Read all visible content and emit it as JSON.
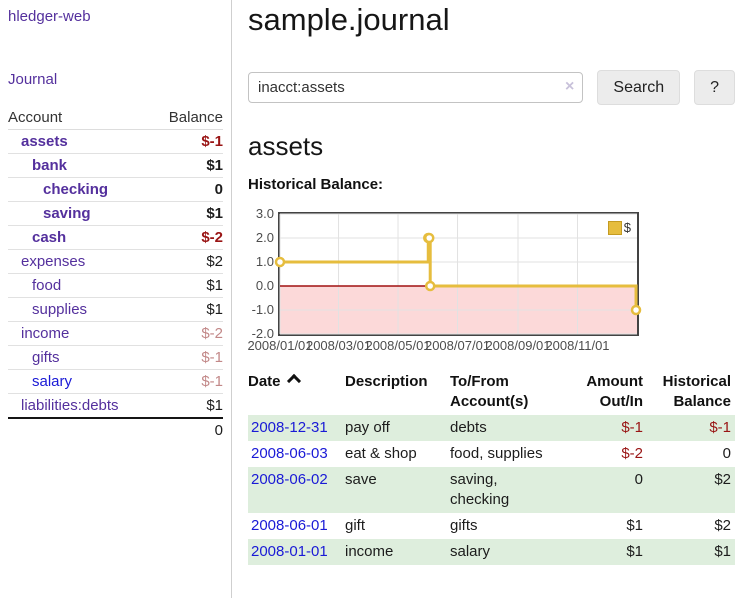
{
  "app": {
    "brand": "hledger-web",
    "nav_journal": "Journal"
  },
  "colors": {
    "link_purple": "#54309d",
    "link_blue": "#1a1ad6",
    "negative_strong": "#991414",
    "negative_light": "#c28888",
    "row_green": "#deeedd",
    "chart_gold": "#e6bd3e",
    "chart_pink": "#fcd9d9",
    "chart_zero_line": "#a01010",
    "chart_grid": "#e2e2e2"
  },
  "sidebar": {
    "headers": {
      "account": "Account",
      "balance": "Balance"
    },
    "accounts": [
      {
        "name": "assets",
        "level": 1,
        "bold": true,
        "balance": "$-1",
        "tone": "neg-strong"
      },
      {
        "name": "bank",
        "level": 2,
        "bold": true,
        "balance": "$1",
        "tone": ""
      },
      {
        "name": "checking",
        "level": 3,
        "bold": true,
        "balance": "0",
        "tone": ""
      },
      {
        "name": "saving",
        "level": 3,
        "bold": true,
        "balance": "$1",
        "tone": ""
      },
      {
        "name": "cash",
        "level": 2,
        "bold": true,
        "balance": "$-2",
        "tone": "neg-strong"
      },
      {
        "name": "expenses",
        "level": 1,
        "bold": false,
        "balance": "$2",
        "tone": ""
      },
      {
        "name": "food",
        "level": 2,
        "bold": false,
        "balance": "$1",
        "tone": ""
      },
      {
        "name": "supplies",
        "level": 2,
        "bold": false,
        "balance": "$1",
        "tone": ""
      },
      {
        "name": "income",
        "level": 1,
        "bold": false,
        "balance": "$-2",
        "tone": "neg-light"
      },
      {
        "name": "gifts",
        "level": 2,
        "bold": false,
        "balance": "$-1",
        "tone": "neg-light"
      },
      {
        "name": "salary",
        "level": 2,
        "bold": false,
        "balance": "$-1",
        "tone": "neg-light",
        "link_color": "blue"
      },
      {
        "name": "liabilities:debts",
        "level": 1,
        "bold": false,
        "balance": "$1",
        "tone": ""
      }
    ],
    "total": "0"
  },
  "page": {
    "title": "sample.journal"
  },
  "search": {
    "value": "inacct:assets",
    "clear_icon": "×",
    "submit_label": "Search",
    "help_label": "?"
  },
  "account_view": {
    "heading": "assets",
    "chart_title": "Historical Balance:"
  },
  "chart_data": {
    "type": "line",
    "mode": "steps",
    "title": "Historical Balance of assets",
    "legend": [
      {
        "label": "$",
        "color": "#e6bd3e"
      }
    ],
    "legend_position": "top-right",
    "grid": true,
    "y_axis": {
      "min": -2,
      "max": 3,
      "ticks": [
        {
          "label": "3.0",
          "value": 3
        },
        {
          "label": "2.0",
          "value": 2
        },
        {
          "label": "1.0",
          "value": 1
        },
        {
          "label": "0.0",
          "value": 0
        },
        {
          "label": "-1.0",
          "value": -1
        },
        {
          "label": "-2.0",
          "value": -2
        }
      ]
    },
    "x_axis": {
      "max_day": 366,
      "ticks": [
        {
          "label": "2008/01/01",
          "day": 0
        },
        {
          "label": "2008/03/01",
          "day": 60
        },
        {
          "label": "2008/05/01",
          "day": 121
        },
        {
          "label": "2008/07/01",
          "day": 182
        },
        {
          "label": "2008/09/01",
          "day": 244
        },
        {
          "label": "2008/11/01",
          "day": 305
        }
      ]
    },
    "points": [
      {
        "date": "2008-01-01",
        "day": 0,
        "value": 1
      },
      {
        "date": "2008-06-01",
        "day": 152,
        "value": 2
      },
      {
        "date": "2008-06-02",
        "day": 153,
        "value": 2
      },
      {
        "date": "2008-06-03",
        "day": 154,
        "value": 0
      },
      {
        "date": "2008-12-31",
        "day": 365,
        "value": -1
      }
    ],
    "negative_region": {
      "from": 0,
      "to": -2
    }
  },
  "register": {
    "headers": {
      "date": "Date",
      "description": "Description",
      "account": "To/From Account(s)",
      "amount": "Amount Out/In",
      "balance": "Historical Balance"
    },
    "sort_icon": "chevron-up",
    "rows": [
      {
        "date": "2008-12-31",
        "description": "pay off",
        "accounts": "debts",
        "amount": "$-1",
        "amount_neg": true,
        "balance": "$-1",
        "balance_neg": true,
        "shaded": true
      },
      {
        "date": "2008-06-03",
        "description": "eat & shop",
        "accounts": "food, supplies",
        "amount": "$-2",
        "amount_neg": true,
        "balance": "0",
        "balance_neg": false,
        "shaded": false
      },
      {
        "date": "2008-06-02",
        "description": "save",
        "accounts": "saving, checking",
        "amount": "0",
        "amount_neg": false,
        "balance": "$2",
        "balance_neg": false,
        "shaded": true
      },
      {
        "date": "2008-06-01",
        "description": "gift",
        "accounts": "gifts",
        "amount": "$1",
        "amount_neg": false,
        "balance": "$2",
        "balance_neg": false,
        "shaded": false
      },
      {
        "date": "2008-01-01",
        "description": "income",
        "accounts": "salary",
        "amount": "$1",
        "amount_neg": false,
        "balance": "$1",
        "balance_neg": false,
        "shaded": true
      }
    ]
  }
}
